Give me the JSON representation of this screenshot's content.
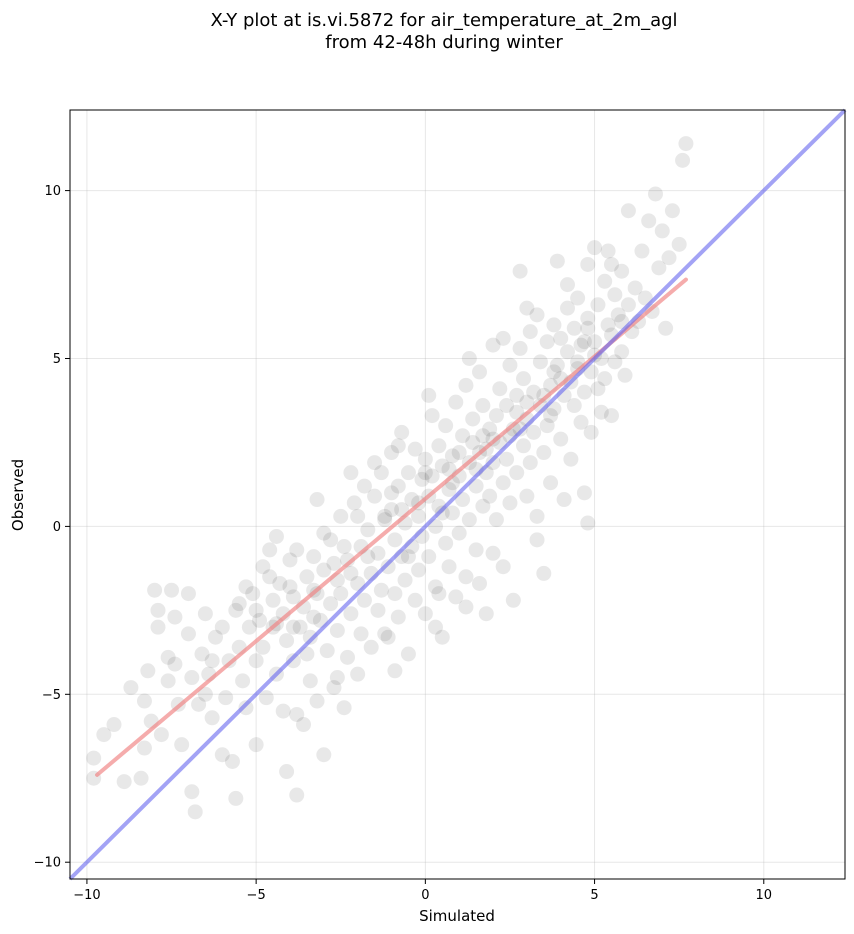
{
  "chart_data": {
    "type": "scatter",
    "title_line1": "X-Y plot at is.vi.5872 for air_temperature_at_2m_agl",
    "title_line2": "from 42-48h during winter",
    "xlabel": "Simulated",
    "ylabel": "Observed",
    "xlim": [
      -10.5,
      12.4
    ],
    "ylim": [
      -10.5,
      12.4
    ],
    "x_ticks": [
      -10,
      -5,
      0,
      5,
      10
    ],
    "y_ticks": [
      -10,
      -5,
      0,
      5,
      10
    ],
    "x_tick_labels": [
      "−10",
      "−5",
      "0",
      "5",
      "10"
    ],
    "y_tick_labels": [
      "−10",
      "−5",
      "0",
      "5",
      "10"
    ],
    "grid": true,
    "marker_color": "#000000",
    "marker_opacity": 0.09,
    "fit_line": {
      "x": [
        -9.7,
        7.7
      ],
      "y": [
        -7.4,
        7.35
      ],
      "color": "#f08080"
    },
    "identity_line": {
      "x": [
        -10.5,
        12.4
      ],
      "y": [
        -10.5,
        12.4
      ],
      "color": "#6666ee"
    },
    "points": [
      [
        -9.8,
        -7.5
      ],
      [
        -9.8,
        -6.9
      ],
      [
        -9.5,
        -6.2
      ],
      [
        -9.2,
        -5.9
      ],
      [
        -8.9,
        -7.6
      ],
      [
        -8.7,
        -4.8
      ],
      [
        -8.4,
        -7.5
      ],
      [
        -8.3,
        -6.6
      ],
      [
        -8.2,
        -4.3
      ],
      [
        -8.1,
        -5.8
      ],
      [
        -8.0,
        -1.9
      ],
      [
        -7.9,
        -2.5
      ],
      [
        -7.9,
        -3.0
      ],
      [
        -7.8,
        -6.2
      ],
      [
        -7.6,
        -3.9
      ],
      [
        -7.5,
        -1.9
      ],
      [
        -7.4,
        -2.7
      ],
      [
        -7.4,
        -4.1
      ],
      [
        -7.3,
        -5.3
      ],
      [
        -7.2,
        -6.5
      ],
      [
        -7.0,
        -3.2
      ],
      [
        -6.9,
        -4.5
      ],
      [
        -6.9,
        -7.9
      ],
      [
        -6.8,
        -8.5
      ],
      [
        -6.7,
        -5.3
      ],
      [
        -6.6,
        -3.8
      ],
      [
        -6.5,
        -2.6
      ],
      [
        -6.4,
        -4.4
      ],
      [
        -6.3,
        -5.7
      ],
      [
        -6.2,
        -3.3
      ],
      [
        -6.0,
        -6.8
      ],
      [
        -6.0,
        -3.0
      ],
      [
        -5.9,
        -5.1
      ],
      [
        -5.8,
        -4.0
      ],
      [
        -5.7,
        -7.0
      ],
      [
        -5.6,
        -2.5
      ],
      [
        -5.6,
        -8.1
      ],
      [
        -5.5,
        -3.6
      ],
      [
        -5.4,
        -4.6
      ],
      [
        -5.3,
        -1.8
      ],
      [
        -5.3,
        -5.4
      ],
      [
        -5.2,
        -3.0
      ],
      [
        -5.1,
        -2.0
      ],
      [
        -5.0,
        -4.0
      ],
      [
        -5.0,
        -6.5
      ],
      [
        -4.9,
        -2.8
      ],
      [
        -4.8,
        -1.2
      ],
      [
        -4.8,
        -3.6
      ],
      [
        -4.7,
        -5.1
      ],
      [
        -4.6,
        -0.7
      ],
      [
        -4.5,
        -2.2
      ],
      [
        -4.5,
        -3.0
      ],
      [
        -4.4,
        -4.4
      ],
      [
        -4.3,
        -1.7
      ],
      [
        -4.2,
        -5.5
      ],
      [
        -4.2,
        -2.6
      ],
      [
        -4.1,
        -7.3
      ],
      [
        -4.1,
        -3.4
      ],
      [
        -4.0,
        -1.0
      ],
      [
        -3.9,
        -4.0
      ],
      [
        -3.9,
        -2.1
      ],
      [
        -3.8,
        -0.7
      ],
      [
        -3.8,
        -8.0
      ],
      [
        -3.7,
        -3.0
      ],
      [
        -3.6,
        -5.9
      ],
      [
        -3.6,
        -2.4
      ],
      [
        -3.5,
        -1.5
      ],
      [
        -3.4,
        -4.6
      ],
      [
        -3.4,
        -3.3
      ],
      [
        -3.3,
        -0.9
      ],
      [
        -3.2,
        -2.0
      ],
      [
        -3.2,
        -5.2
      ],
      [
        -3.1,
        -2.8
      ],
      [
        -3.0,
        -1.3
      ],
      [
        -3.0,
        -6.8
      ],
      [
        -2.9,
        -3.7
      ],
      [
        -2.8,
        -0.4
      ],
      [
        -2.8,
        -2.3
      ],
      [
        -2.7,
        -4.8
      ],
      [
        -2.6,
        -1.6
      ],
      [
        -2.6,
        -3.1
      ],
      [
        -2.5,
        0.3
      ],
      [
        -2.5,
        -2.0
      ],
      [
        -2.4,
        -5.4
      ],
      [
        -2.3,
        -1.0
      ],
      [
        -2.3,
        -3.9
      ],
      [
        -2.2,
        -2.6
      ],
      [
        -2.1,
        0.7
      ],
      [
        -2.0,
        -1.7
      ],
      [
        -2.0,
        -4.4
      ],
      [
        -1.9,
        -0.6
      ],
      [
        -1.9,
        -3.2
      ],
      [
        -1.8,
        1.2
      ],
      [
        -1.8,
        -2.2
      ],
      [
        -1.7,
        -0.1
      ],
      [
        -1.6,
        -1.4
      ],
      [
        -1.6,
        -3.6
      ],
      [
        -1.5,
        0.9
      ],
      [
        -1.4,
        -2.5
      ],
      [
        -1.4,
        -0.8
      ],
      [
        -1.3,
        1.6
      ],
      [
        -1.3,
        -1.9
      ],
      [
        -1.2,
        0.2
      ],
      [
        -1.1,
        -3.3
      ],
      [
        -1.1,
        -1.2
      ],
      [
        -1.0,
        2.2
      ],
      [
        -1.0,
        0.5
      ],
      [
        -0.9,
        -2.0
      ],
      [
        -0.9,
        -0.4
      ],
      [
        -0.8,
        1.2
      ],
      [
        -0.8,
        -2.7
      ],
      [
        -0.7,
        -0.9
      ],
      [
        -0.7,
        2.8
      ],
      [
        -0.6,
        0.1
      ],
      [
        -0.6,
        -1.6
      ],
      [
        -0.5,
        1.6
      ],
      [
        -0.5,
        -3.8
      ],
      [
        -0.4,
        -0.6
      ],
      [
        -0.4,
        0.8
      ],
      [
        -0.3,
        -2.2
      ],
      [
        -0.3,
        2.3
      ],
      [
        -0.2,
        0.3
      ],
      [
        -0.2,
        -1.3
      ],
      [
        -0.1,
        1.4
      ],
      [
        -0.1,
        -0.3
      ],
      [
        0.0,
        2.0
      ],
      [
        0.0,
        -2.6
      ],
      [
        0.1,
        0.9
      ],
      [
        0.1,
        -0.9
      ],
      [
        0.2,
        3.3
      ],
      [
        0.2,
        1.5
      ],
      [
        0.3,
        0.0
      ],
      [
        0.3,
        -1.8
      ],
      [
        0.4,
        2.4
      ],
      [
        0.4,
        0.6
      ],
      [
        0.5,
        -3.3
      ],
      [
        0.5,
        1.8
      ],
      [
        0.6,
        -0.5
      ],
      [
        0.6,
        3.0
      ],
      [
        0.7,
        1.1
      ],
      [
        0.7,
        -1.2
      ],
      [
        0.8,
        2.1
      ],
      [
        0.8,
        0.4
      ],
      [
        0.9,
        3.7
      ],
      [
        0.9,
        -2.1
      ],
      [
        1.0,
        1.5
      ],
      [
        1.0,
        -0.2
      ],
      [
        1.1,
        2.7
      ],
      [
        1.1,
        0.8
      ],
      [
        1.2,
        4.2
      ],
      [
        1.2,
        -1.5
      ],
      [
        1.3,
        1.9
      ],
      [
        1.3,
        0.2
      ],
      [
        1.4,
        3.2
      ],
      [
        1.4,
        2.5
      ],
      [
        1.5,
        -0.7
      ],
      [
        1.5,
        1.2
      ],
      [
        1.6,
        4.6
      ],
      [
        1.6,
        2.2
      ],
      [
        1.7,
        0.6
      ],
      [
        1.7,
        3.6
      ],
      [
        1.8,
        1.6
      ],
      [
        1.8,
        -2.6
      ],
      [
        1.9,
        2.9
      ],
      [
        1.9,
        0.9
      ],
      [
        2.0,
        5.4
      ],
      [
        2.0,
        1.9
      ],
      [
        2.1,
        3.3
      ],
      [
        2.1,
        0.2
      ],
      [
        2.2,
        2.5
      ],
      [
        2.2,
        4.1
      ],
      [
        2.3,
        1.3
      ],
      [
        2.3,
        -1.2
      ],
      [
        2.4,
        3.6
      ],
      [
        2.4,
        2.0
      ],
      [
        2.5,
        4.8
      ],
      [
        2.5,
        0.7
      ],
      [
        2.6,
        2.9
      ],
      [
        2.6,
        -2.2
      ],
      [
        2.7,
        3.9
      ],
      [
        2.7,
        1.6
      ],
      [
        2.8,
        7.6
      ],
      [
        2.8,
        5.3
      ],
      [
        2.9,
        2.4
      ],
      [
        2.9,
        4.4
      ],
      [
        3.0,
        0.9
      ],
      [
        3.0,
        3.2
      ],
      [
        3.1,
        5.8
      ],
      [
        3.1,
        1.9
      ],
      [
        3.2,
        4.0
      ],
      [
        3.2,
        2.8
      ],
      [
        3.3,
        6.3
      ],
      [
        3.3,
        -0.4
      ],
      [
        3.4,
        3.6
      ],
      [
        3.4,
        4.9
      ],
      [
        3.5,
        2.2
      ],
      [
        3.5,
        -1.4
      ],
      [
        3.6,
        5.5
      ],
      [
        3.6,
        3.0
      ],
      [
        3.7,
        4.2
      ],
      [
        3.7,
        1.3
      ],
      [
        3.8,
        6.0
      ],
      [
        3.8,
        3.5
      ],
      [
        3.9,
        7.9
      ],
      [
        3.9,
        4.8
      ],
      [
        4.0,
        2.6
      ],
      [
        4.0,
        5.6
      ],
      [
        4.1,
        3.9
      ],
      [
        4.1,
        0.8
      ],
      [
        4.2,
        5.2
      ],
      [
        4.2,
        6.5
      ],
      [
        4.3,
        4.3
      ],
      [
        4.3,
        2.0
      ],
      [
        4.4,
        5.9
      ],
      [
        4.4,
        3.6
      ],
      [
        4.5,
        4.9
      ],
      [
        4.5,
        6.8
      ],
      [
        4.6,
        3.1
      ],
      [
        4.6,
        5.4
      ],
      [
        4.7,
        4.0
      ],
      [
        4.7,
        1.0
      ],
      [
        4.8,
        6.2
      ],
      [
        4.8,
        0.1
      ],
      [
        4.8,
        7.8
      ],
      [
        4.9,
        4.6
      ],
      [
        4.9,
        2.8
      ],
      [
        5.0,
        5.5
      ],
      [
        5.0,
        8.3
      ],
      [
        5.1,
        4.1
      ],
      [
        5.1,
        6.6
      ],
      [
        5.2,
        3.4
      ],
      [
        5.2,
        5.0
      ],
      [
        5.3,
        7.3
      ],
      [
        5.3,
        4.4
      ],
      [
        5.4,
        6.0
      ],
      [
        5.4,
        8.2
      ],
      [
        5.5,
        3.3
      ],
      [
        5.5,
        5.7
      ],
      [
        5.6,
        6.9
      ],
      [
        5.6,
        4.9
      ],
      [
        5.7,
        6.3
      ],
      [
        5.8,
        5.2
      ],
      [
        5.8,
        7.6
      ],
      [
        5.9,
        4.5
      ],
      [
        6.0,
        6.6
      ],
      [
        6.0,
        9.4
      ],
      [
        6.1,
        5.8
      ],
      [
        6.2,
        7.1
      ],
      [
        6.3,
        6.1
      ],
      [
        6.4,
        8.2
      ],
      [
        6.5,
        6.8
      ],
      [
        6.6,
        9.1
      ],
      [
        6.7,
        6.4
      ],
      [
        6.8,
        9.9
      ],
      [
        6.9,
        7.7
      ],
      [
        7.0,
        8.8
      ],
      [
        7.1,
        5.9
      ],
      [
        7.2,
        8.0
      ],
      [
        7.3,
        9.4
      ],
      [
        7.5,
        8.4
      ],
      [
        7.6,
        10.9
      ],
      [
        7.7,
        11.4
      ],
      [
        -1.5,
        1.9
      ],
      [
        -2.4,
        -0.6
      ],
      [
        -3.5,
        -3.8
      ],
      [
        -4.6,
        -1.5
      ],
      [
        -5.5,
        -2.3
      ],
      [
        -6.3,
        -4.0
      ],
      [
        -7.0,
        -2.0
      ],
      [
        -3.0,
        -0.2
      ],
      [
        -2.0,
        0.3
      ],
      [
        -1.0,
        1.0
      ],
      [
        0.0,
        1.6
      ],
      [
        1.0,
        2.2
      ],
      [
        2.0,
        2.6
      ],
      [
        3.0,
        3.7
      ],
      [
        4.0,
        4.4
      ],
      [
        5.0,
        5.1
      ],
      [
        -0.5,
        -0.9
      ],
      [
        0.5,
        0.4
      ],
      [
        1.5,
        1.7
      ],
      [
        2.5,
        2.7
      ],
      [
        3.5,
        3.9
      ],
      [
        4.5,
        4.7
      ],
      [
        -4.0,
        -1.8
      ],
      [
        -3.3,
        -2.7
      ],
      [
        -2.7,
        -1.1
      ],
      [
        -1.7,
        -0.9
      ],
      [
        -0.7,
        0.5
      ],
      [
        0.7,
        1.7
      ],
      [
        1.7,
        2.7
      ],
      [
        2.7,
        3.4
      ],
      [
        3.7,
        3.3
      ],
      [
        4.7,
        5.5
      ],
      [
        -5.0,
        -2.5
      ],
      [
        -4.4,
        -2.9
      ],
      [
        -3.9,
        -3.0
      ],
      [
        -3.3,
        -1.9
      ],
      [
        -2.2,
        -1.4
      ],
      [
        -1.2,
        0.3
      ],
      [
        -0.2,
        0.7
      ],
      [
        0.8,
        1.3
      ],
      [
        1.8,
        2.3
      ],
      [
        2.8,
        2.9
      ],
      [
        3.8,
        4.6
      ],
      [
        4.8,
        5.9
      ],
      [
        5.8,
        6.1
      ],
      [
        -6.5,
        -5.0
      ],
      [
        -7.6,
        -4.6
      ],
      [
        -8.3,
        -5.2
      ],
      [
        0.3,
        -3.0
      ],
      [
        1.2,
        -2.4
      ],
      [
        2.0,
        -0.8
      ],
      [
        3.3,
        0.3
      ],
      [
        -1.2,
        -3.2
      ],
      [
        -2.6,
        -4.5
      ],
      [
        -3.8,
        -5.6
      ],
      [
        -0.9,
        -4.3
      ],
      [
        0.4,
        -2.0
      ],
      [
        1.6,
        -1.7
      ],
      [
        2.3,
        5.6
      ],
      [
        1.3,
        5.0
      ],
      [
        0.1,
        3.9
      ],
      [
        -0.8,
        2.4
      ],
      [
        3.0,
        6.5
      ],
      [
        4.2,
        7.2
      ],
      [
        5.5,
        7.8
      ],
      [
        -2.2,
        1.6
      ],
      [
        -3.2,
        0.8
      ],
      [
        -4.4,
        -0.3
      ]
    ]
  }
}
